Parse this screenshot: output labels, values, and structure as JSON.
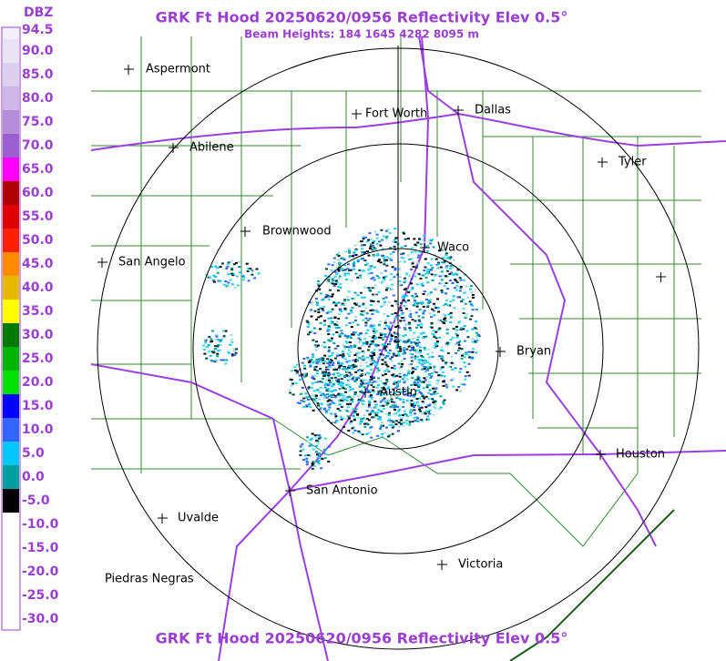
{
  "header": {
    "title": "GRK Ft Hood 20250620/0956 Reflectivity Elev 0.5°",
    "subtitle": "Beam Heights: 184 1645 4282 8095 m"
  },
  "legend": {
    "unit": "DBZ",
    "labels": [
      "94.5",
      "90.0",
      "85.0",
      "80.0",
      "75.0",
      "70.0",
      "65.0",
      "60.0",
      "55.0",
      "50.0",
      "45.0",
      "40.0",
      "35.0",
      "30.0",
      "25.0",
      "20.0",
      "15.0",
      "10.0",
      "5.0",
      "0.0",
      "-5.0",
      "-10.0",
      "-15.0",
      "-20.0",
      "-25.0",
      "-30.0"
    ]
  },
  "cities": [
    {
      "label": "Aspermont"
    },
    {
      "label": "Abilene"
    },
    {
      "label": "Fort Worth"
    },
    {
      "label": "Dallas"
    },
    {
      "label": "Tyler"
    },
    {
      "label": "Brownwood"
    },
    {
      "label": "Waco"
    },
    {
      "label": "San Angelo"
    },
    {
      "label": "Bryan"
    },
    {
      "label": "Austin"
    },
    {
      "label": "Houston"
    },
    {
      "label": "San Antonio"
    },
    {
      "label": "Uvalde"
    },
    {
      "label": "Victoria"
    },
    {
      "label": "Piedras Negras"
    }
  ],
  "footer": {
    "title": "GRK Ft Hood 20250620/0956 Reflectivity Elev 0.5°"
  }
}
